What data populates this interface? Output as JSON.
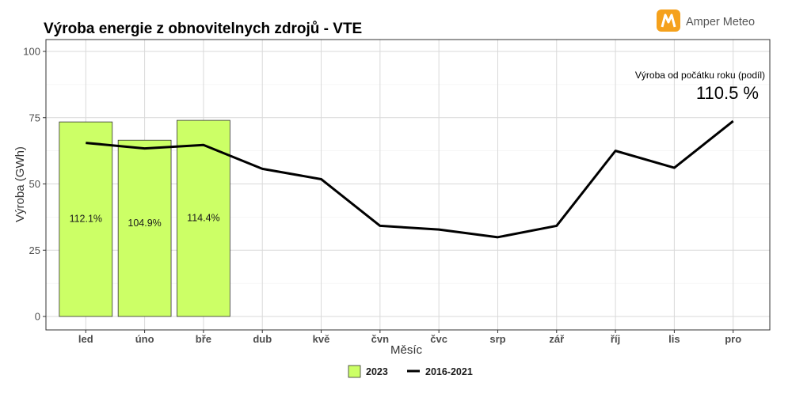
{
  "brand": {
    "name": "Amper Meteo",
    "icon": "amper-meteo-logo-icon",
    "color": "#f5a11c"
  },
  "chart_data": {
    "type": "bar",
    "title": "Výroba energie z obnovitelnych zdrojů - VTE",
    "xlabel": "Měsíc",
    "ylabel": "Výroba (GWh)",
    "ylim": [
      0,
      100
    ],
    "yticks": [
      "0",
      "25",
      "50",
      "75",
      "100"
    ],
    "grid": true,
    "legend_position": "bottom",
    "categories": [
      "led",
      "úno",
      "bře",
      "dub",
      "kvě",
      "čvn",
      "čvc",
      "srp",
      "zář",
      "říj",
      "lis",
      "pro"
    ],
    "series": [
      {
        "name": "2023",
        "type": "bar",
        "color": "#ccff66",
        "values": [
          73.4,
          66.5,
          74.0,
          null,
          null,
          null,
          null,
          null,
          null,
          null,
          null,
          null
        ],
        "labels": [
          "112.1%",
          "104.9%",
          "114.4%"
        ]
      },
      {
        "name": "2016-2021",
        "type": "line",
        "color": "#000000",
        "values": [
          65.5,
          63.4,
          64.7,
          55.7,
          51.8,
          34.2,
          32.8,
          29.9,
          34.2,
          62.5,
          56.1,
          73.7
        ]
      }
    ],
    "annotation": {
      "label": "Výroba od počátku roku (podíl)",
      "value": "110.5 %"
    }
  }
}
